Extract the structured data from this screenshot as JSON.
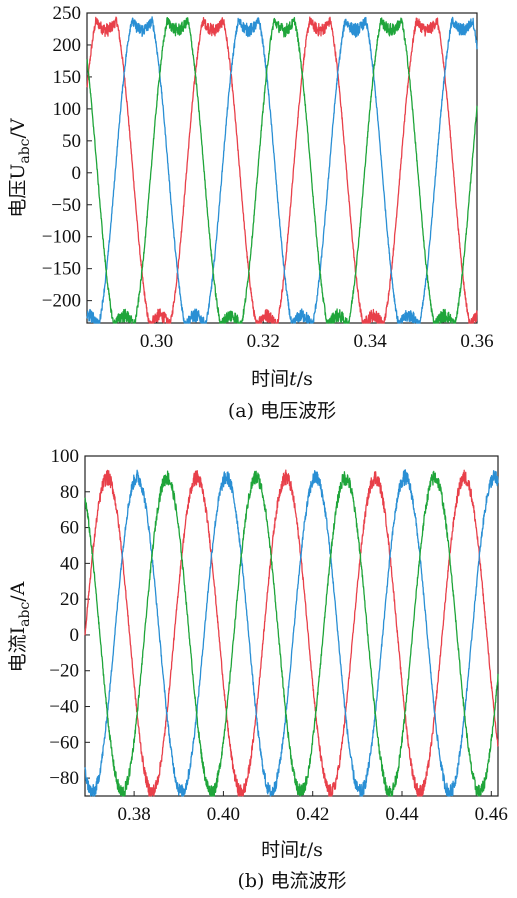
{
  "chart_data": [
    {
      "type": "line",
      "caption": "(a) 电压波形",
      "ylabel": "电压U",
      "ylabel_sub": "abc",
      "ylabel_unit": "/V",
      "xlabel": "时间",
      "xlabel_var": "t",
      "xlabel_unit": "/s",
      "xlim": [
        0.287,
        0.36
      ],
      "ylim": [
        -235,
        250
      ],
      "x_ticks": [
        "0.30",
        "0.32",
        "0.34",
        "0.36"
      ],
      "y_ticks": [
        "250",
        "200",
        "150",
        "100",
        "50",
        "0",
        "−50",
        "−100",
        "−150",
        "−200"
      ],
      "grid": false,
      "waveform": {
        "amplitude": 235,
        "frequency_hz": 50,
        "shape": "flat-topped sine with switching ripple"
      },
      "series": [
        {
          "color": "#e8404a",
          "phase_deg": -101
        },
        {
          "color": "#2a8fd4",
          "phase_deg": 139
        },
        {
          "color": "#1fa53a",
          "phase_deg": 19
        }
      ]
    },
    {
      "type": "line",
      "caption": "(b) 电流波形",
      "ylabel": "电流I",
      "ylabel_sub": "abc",
      "ylabel_unit": "/A",
      "xlabel": "时间",
      "xlabel_var": "t",
      "xlabel_unit": "/s",
      "xlim": [
        0.369,
        0.4615
      ],
      "ylim": [
        -90,
        100
      ],
      "x_ticks": [
        "0.38",
        "0.40",
        "0.42",
        "0.44",
        "0.46"
      ],
      "y_ticks": [
        "100",
        "80",
        "60",
        "40",
        "20",
        "0",
        "−20",
        "−40",
        "−60",
        "−80"
      ],
      "grid": false,
      "waveform": {
        "amplitude": 88,
        "frequency_hz": 50,
        "shape": "sine with switching ripple"
      },
      "series": [
        {
          "color": "#e8404a",
          "phase_deg": -162
        },
        {
          "color": "#2a8fd4",
          "phase_deg": 78
        },
        {
          "color": "#1fa53a",
          "phase_deg": -42
        }
      ]
    }
  ]
}
